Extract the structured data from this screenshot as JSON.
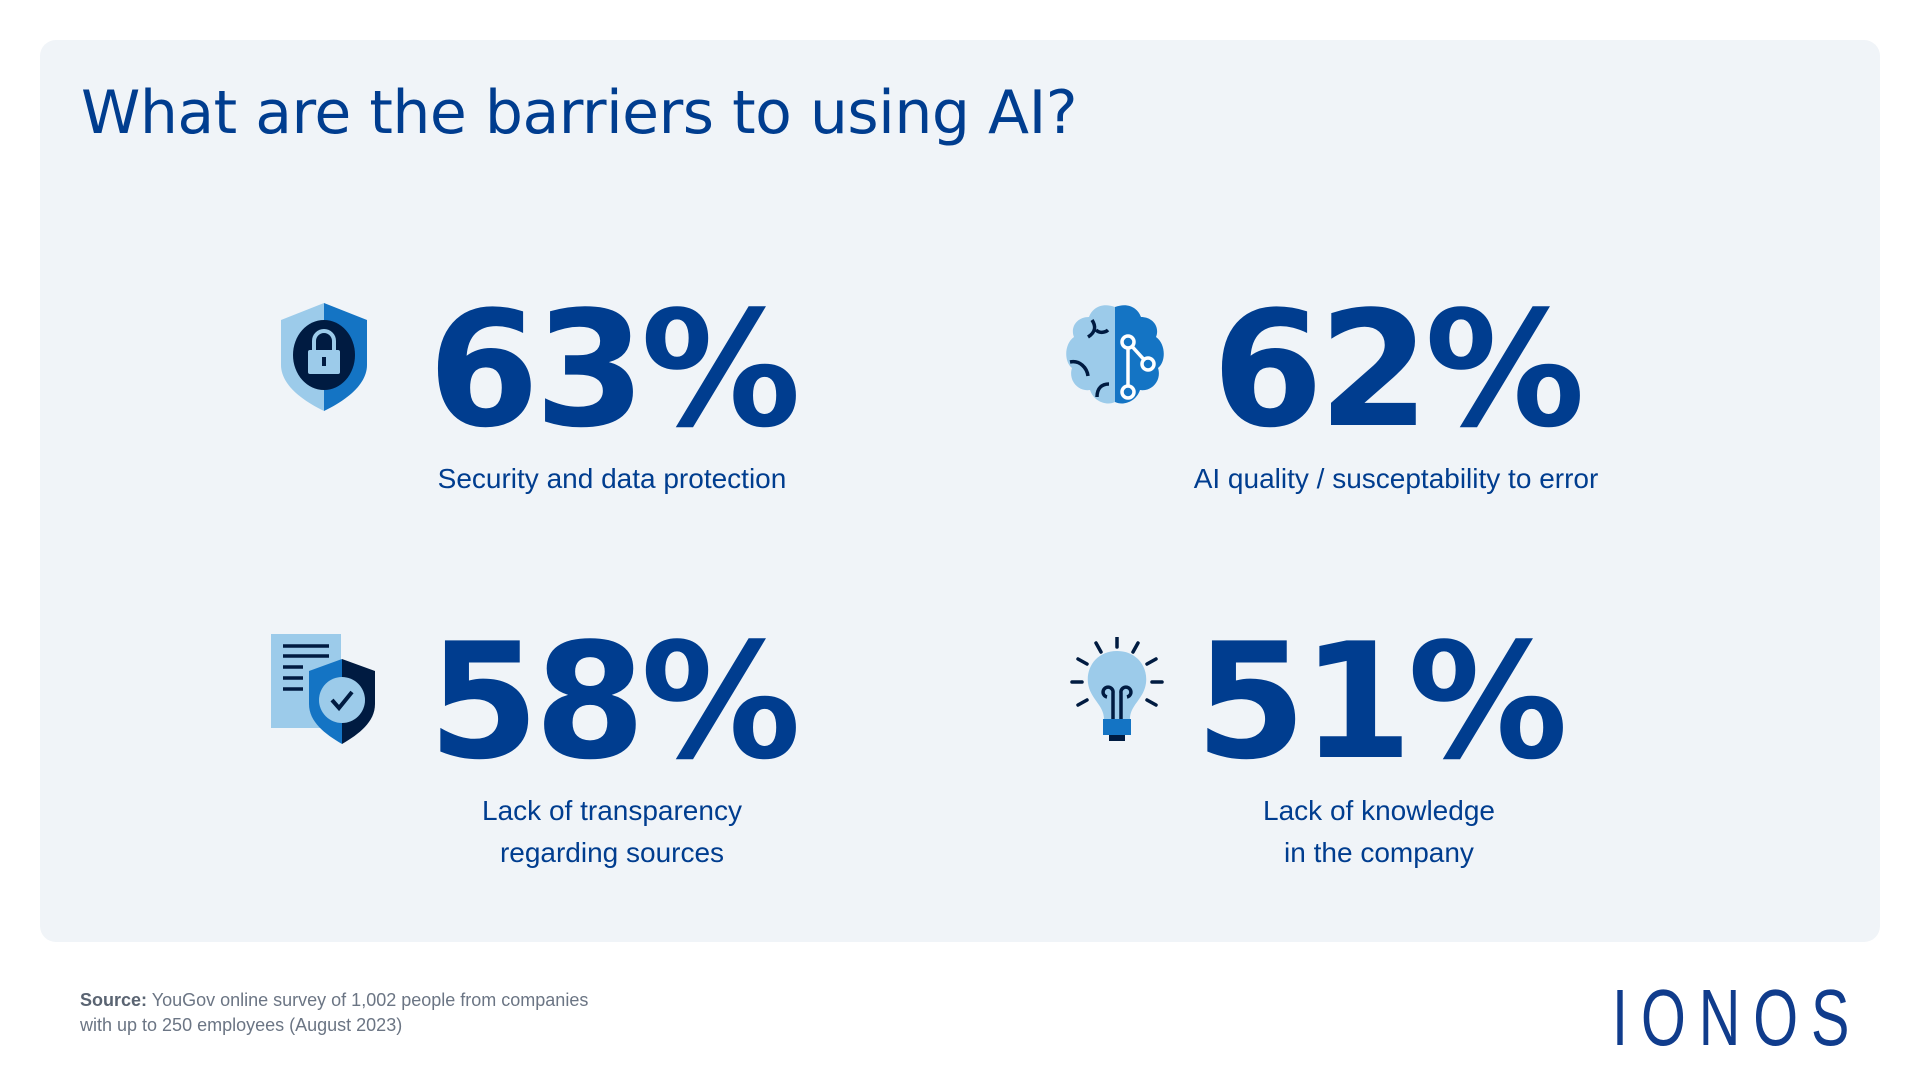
{
  "title": "What are the barriers to using AI?",
  "colors": {
    "primary": "#003d8f",
    "light_blue": "#9ccbea",
    "mid_blue": "#1474c4",
    "navy": "#001b41",
    "card_bg": "#f0f4f8"
  },
  "stats": [
    {
      "value": "63%",
      "label_lines": [
        "Security and data protection"
      ],
      "icon": "shield-lock-icon"
    },
    {
      "value": "62%",
      "label_lines": [
        "AI quality / susceptability to error"
      ],
      "icon": "brain-circuit-icon"
    },
    {
      "value": "58%",
      "label_lines": [
        "Lack of transparency",
        "regarding sources"
      ],
      "icon": "document-shield-check-icon"
    },
    {
      "value": "51%",
      "label_lines": [
        "Lack of knowledge",
        "in the company"
      ],
      "icon": "lightbulb-icon"
    }
  ],
  "source": {
    "label": "Source:",
    "line1": "YouGov online survey of 1,002 people from companies",
    "line2": "with up to 250 employees (August 2023)"
  },
  "logo": "IONOS"
}
